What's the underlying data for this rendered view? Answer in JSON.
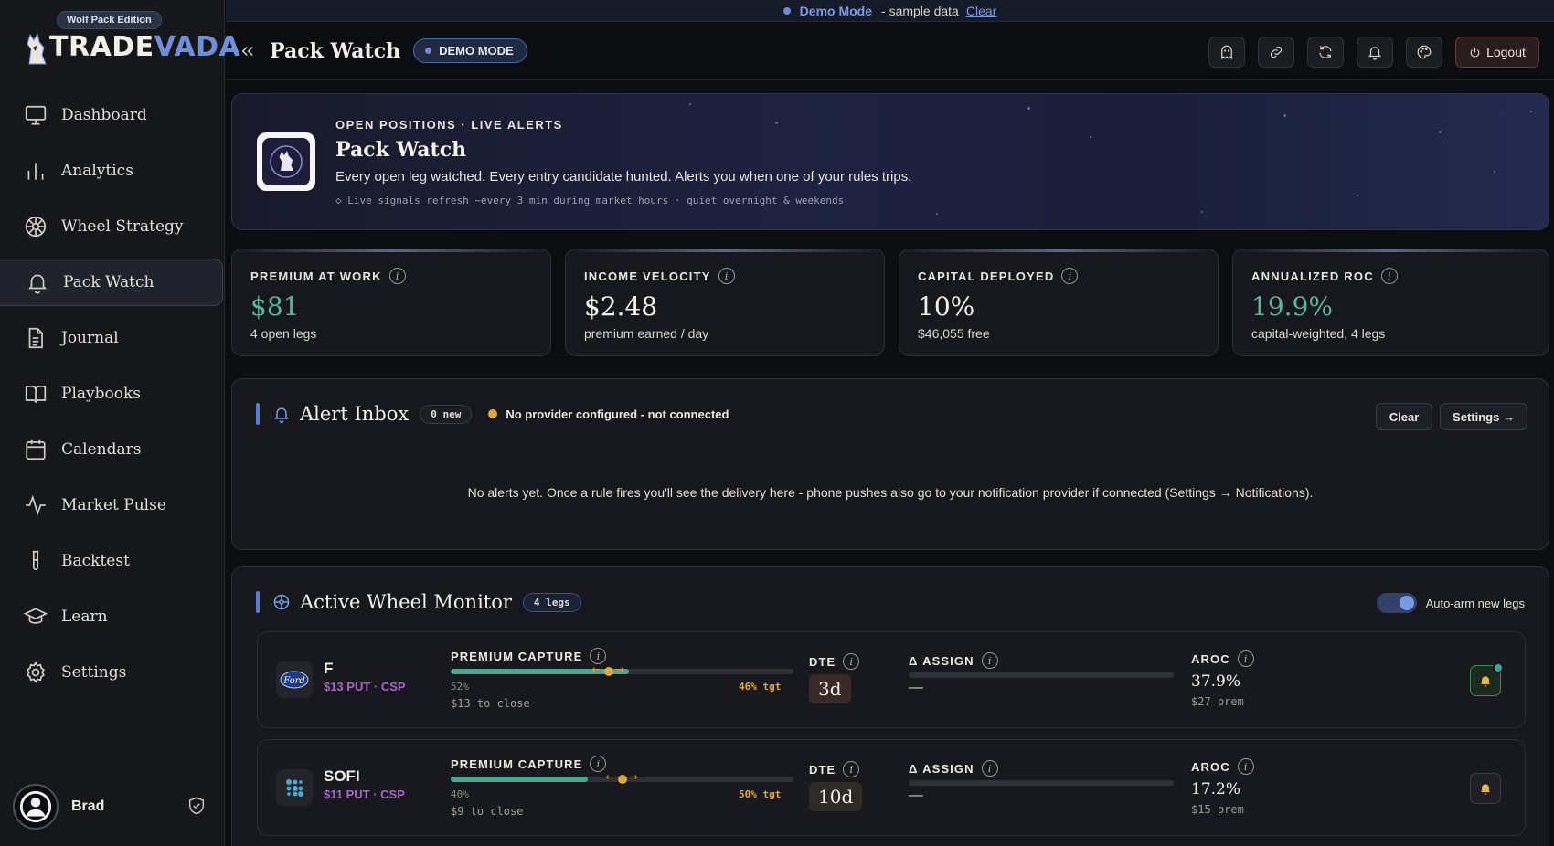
{
  "banner": {
    "mode": "Demo Mode",
    "sub": "- sample data",
    "clear": "Clear"
  },
  "brand": {
    "edition": "Wolf Pack Edition",
    "name_part1": "TRADE",
    "name_part2": "VADA"
  },
  "nav": [
    {
      "label": "Dashboard",
      "icon": "monitor-icon"
    },
    {
      "label": "Analytics",
      "icon": "bar-chart-icon"
    },
    {
      "label": "Wheel Strategy",
      "icon": "wheel-icon"
    },
    {
      "label": "Pack Watch",
      "icon": "bell-icon",
      "active": true
    },
    {
      "label": "Journal",
      "icon": "document-icon"
    },
    {
      "label": "Playbooks",
      "icon": "book-icon"
    },
    {
      "label": "Calendars",
      "icon": "calendar-icon"
    },
    {
      "label": "Market Pulse",
      "icon": "pulse-icon"
    },
    {
      "label": "Backtest",
      "icon": "test-tube-icon"
    },
    {
      "label": "Learn",
      "icon": "graduation-cap-icon"
    },
    {
      "label": "Settings",
      "icon": "gear-icon"
    }
  ],
  "user": {
    "name": "Brad"
  },
  "header": {
    "title": "Pack Watch",
    "demo_pill": "DEMO MODE",
    "logout": "Logout"
  },
  "hero": {
    "kicker": "OPEN POSITIONS · LIVE ALERTS",
    "title": "Pack Watch",
    "description": "Every open leg watched. Every entry candidate hunted. Alerts you when one of your rules trips.",
    "note": "◇ Live signals refresh ~every 3 min during market hours · quiet overnight & weekends"
  },
  "kpis": [
    {
      "label": "PREMIUM AT WORK",
      "value": "$81",
      "sub": "4 open legs",
      "green": true
    },
    {
      "label": "INCOME VELOCITY",
      "value": "$2.48",
      "sub": "premium earned / day",
      "green": false
    },
    {
      "label": "CAPITAL DEPLOYED",
      "value": "10%",
      "sub": "$46,055 free",
      "green": false
    },
    {
      "label": "ANNUALIZED ROC",
      "value": "19.9%",
      "sub": "capital-weighted, 4 legs",
      "green": true
    }
  ],
  "alerts": {
    "title": "Alert Inbox",
    "badge": "0 new",
    "status": "No provider configured - not connected",
    "clear": "Clear",
    "settings": "Settings →",
    "empty": "No alerts yet. Once a rule fires you'll see the delivery here - phone pushes also go to your notification provider if connected (Settings → Notifications)."
  },
  "monitor": {
    "title": "Active Wheel Monitor",
    "badge": "4 legs",
    "toggle_label": "Auto-arm new legs",
    "col_premium": "PREMIUM CAPTURE",
    "col_dte": "DTE",
    "col_assign": "Δ ASSIGN",
    "col_aroc": "AROC",
    "legs": [
      {
        "symbol": "F",
        "sub": "$13 PUT · CSP",
        "logo": "ford-logo",
        "capture_pct": "52%",
        "capture": 0.52,
        "target_label": "46% tgt",
        "target": 0.46,
        "to_close": "$13 to close",
        "dte": "3d",
        "assign": "—",
        "aroc": "37.9%",
        "prem": "$27 prem",
        "armed": true
      },
      {
        "symbol": "SOFI",
        "sub": "$11 PUT · CSP",
        "logo": "sofi-logo",
        "capture_pct": "40%",
        "capture": 0.4,
        "target_label": "50% tgt",
        "target": 0.5,
        "to_close": "$9 to close",
        "dte": "10d",
        "assign": "—",
        "aroc": "17.2%",
        "prem": "$15 prem",
        "armed": false
      }
    ]
  },
  "colors": {
    "accent": "#6c8cd8",
    "green": "#5fb3a1",
    "amber": "#e0a640",
    "purple": "#a764c9"
  }
}
